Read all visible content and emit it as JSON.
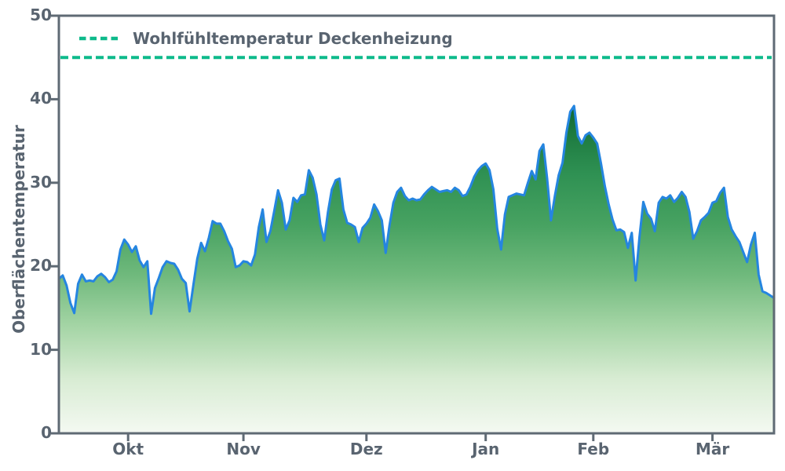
{
  "figure": {
    "background": "#ffffff",
    "spine_color": "#5f6a74",
    "text_color": "#596470"
  },
  "chart_data": {
    "type": "area",
    "title": "",
    "xlabel": "",
    "ylabel": "Oberflächentemperatur",
    "ylim": [
      0,
      50
    ],
    "y_ticks": [
      0,
      10,
      20,
      30,
      40,
      50
    ],
    "x_ticks": [
      {
        "label": "Okt",
        "day": 18
      },
      {
        "label": "Nov",
        "day": 48
      },
      {
        "label": "Dez",
        "day": 80
      },
      {
        "label": "Jan",
        "day": 111
      },
      {
        "label": "Feb",
        "day": 139
      },
      {
        "label": "Mär",
        "day": 170
      }
    ],
    "legend": {
      "label": "Wohlfühltemperatur Deckenheizung",
      "position": "upper left"
    },
    "threshold": {
      "value": 45,
      "color": "#0dba8b",
      "style": "dashed"
    },
    "series": [
      {
        "name": "Oberflächentemperatur",
        "line_color": "#2585e0",
        "fill": "green-gradient",
        "values": [
          18.5,
          18.9,
          17.7,
          15.6,
          14.4,
          17.9,
          19.0,
          18.2,
          18.3,
          18.2,
          18.8,
          19.1,
          18.7,
          18.1,
          18.4,
          19.4,
          22.0,
          23.2,
          22.6,
          21.7,
          22.4,
          20.7,
          19.9,
          20.6,
          14.3,
          17.4,
          18.6,
          19.9,
          20.6,
          20.4,
          20.3,
          19.6,
          18.5,
          18.0,
          14.6,
          17.8,
          20.9,
          22.8,
          21.8,
          23.4,
          25.4,
          25.1,
          25.1,
          24.2,
          23.0,
          22.1,
          19.9,
          20.1,
          20.6,
          20.5,
          20.1,
          21.4,
          24.7,
          26.8,
          22.9,
          24.2,
          26.6,
          29.1,
          27.6,
          24.4,
          25.5,
          28.2,
          27.7,
          28.5,
          28.6,
          31.5,
          30.6,
          28.6,
          25.0,
          23.1,
          26.5,
          29.2,
          30.3,
          30.5,
          26.8,
          25.2,
          25.0,
          24.7,
          22.9,
          24.6,
          25.1,
          25.8,
          27.4,
          26.6,
          25.5,
          21.6,
          24.9,
          27.6,
          28.9,
          29.4,
          28.4,
          27.9,
          28.1,
          27.9,
          28.0,
          28.6,
          29.1,
          29.5,
          29.2,
          28.9,
          29.0,
          29.1,
          28.9,
          29.4,
          29.1,
          28.4,
          28.6,
          29.5,
          30.7,
          31.5,
          32.0,
          32.3,
          31.5,
          29.2,
          24.5,
          22.0,
          26.2,
          28.3,
          28.5,
          28.7,
          28.6,
          28.5,
          30.0,
          31.4,
          30.4,
          33.8,
          34.6,
          30.5,
          25.5,
          28.4,
          30.9,
          32.4,
          36.0,
          38.5,
          39.2,
          35.6,
          34.7,
          35.7,
          36.0,
          35.4,
          34.7,
          32.3,
          29.6,
          27.4,
          25.6,
          24.3,
          24.4,
          24.1,
          22.2,
          24.0,
          18.3,
          23.5,
          27.7,
          26.3,
          25.7,
          24.2,
          27.6,
          28.3,
          28.1,
          28.5,
          27.7,
          28.2,
          28.9,
          28.3,
          26.5,
          23.3,
          24.2,
          25.5,
          25.9,
          26.4,
          27.6,
          27.8,
          28.8,
          29.4,
          25.9,
          24.4,
          23.6,
          22.9,
          21.7,
          20.5,
          22.6,
          24.0,
          19.0,
          17.0,
          16.8,
          16.5,
          16.2
        ]
      }
    ],
    "fill_gradient": [
      {
        "offset": 0.0,
        "color": "#00491d"
      },
      {
        "offset": 0.18,
        "color": "#0a5c29"
      },
      {
        "offset": 0.28,
        "color": "#1d7a40"
      },
      {
        "offset": 0.38,
        "color": "#2f9153"
      },
      {
        "offset": 0.5,
        "color": "#47a261"
      },
      {
        "offset": 0.62,
        "color": "#6fb97c"
      },
      {
        "offset": 0.74,
        "color": "#a3d4a4"
      },
      {
        "offset": 0.87,
        "color": "#d8ecd3"
      },
      {
        "offset": 1.0,
        "color": "#f4f9f2"
      }
    ],
    "grid": false
  }
}
